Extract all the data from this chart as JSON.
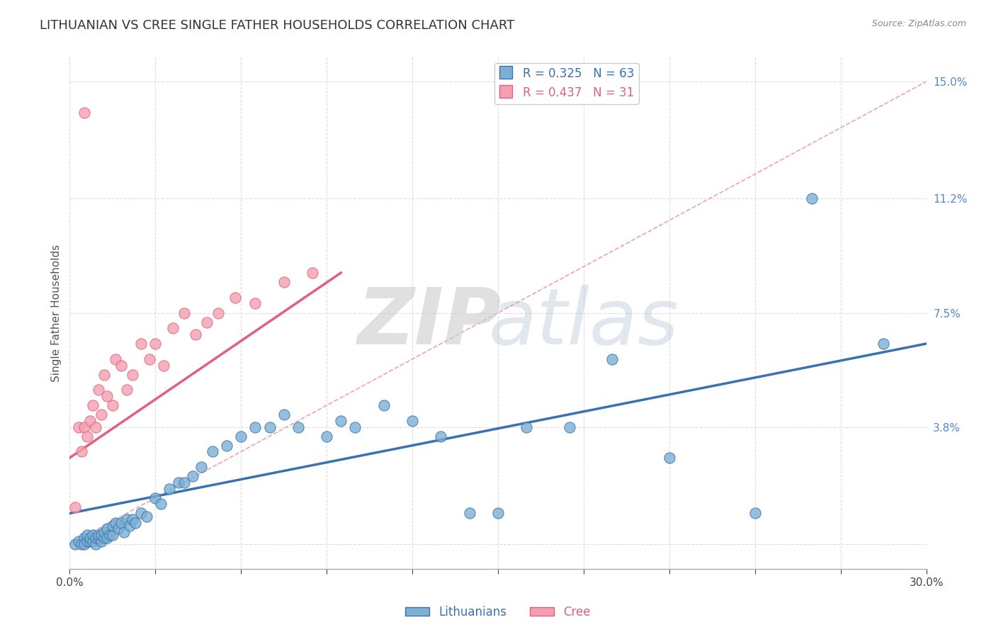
{
  "title": "LITHUANIAN VS CREE SINGLE FATHER HOUSEHOLDS CORRELATION CHART",
  "source": "Source: ZipAtlas.com",
  "ylabel": "Single Father Households",
  "xmin": 0.0,
  "xmax": 0.3,
  "ymin": -0.008,
  "ymax": 0.158,
  "ytick_vals": [
    0.0,
    0.038,
    0.075,
    0.112,
    0.15
  ],
  "ytick_labels": [
    "",
    "3.8%",
    "7.5%",
    "11.2%",
    "15.0%"
  ],
  "xtick_vals": [
    0.0,
    0.03,
    0.06,
    0.09,
    0.12,
    0.15,
    0.18,
    0.21,
    0.24,
    0.27,
    0.3
  ],
  "legend_blue_r": "R = 0.325",
  "legend_blue_n": "N = 63",
  "legend_pink_r": "R = 0.437",
  "legend_pink_n": "N = 31",
  "legend_blue_label": "Lithuanians",
  "legend_pink_label": "Cree",
  "blue_color": "#7BAFD4",
  "pink_color": "#F4A0B0",
  "blue_line_color": "#3A72B0",
  "pink_line_color": "#E06080",
  "ref_line_color": "#F0A0B0",
  "background_color": "#FFFFFF",
  "grid_color": "#DDDDDD",
  "blue_scatter_x": [
    0.002,
    0.003,
    0.004,
    0.005,
    0.005,
    0.006,
    0.006,
    0.007,
    0.007,
    0.008,
    0.008,
    0.009,
    0.009,
    0.01,
    0.01,
    0.011,
    0.011,
    0.012,
    0.012,
    0.013,
    0.013,
    0.014,
    0.015,
    0.015,
    0.016,
    0.017,
    0.018,
    0.019,
    0.02,
    0.021,
    0.022,
    0.023,
    0.025,
    0.027,
    0.03,
    0.032,
    0.035,
    0.038,
    0.04,
    0.043,
    0.046,
    0.05,
    0.055,
    0.06,
    0.065,
    0.07,
    0.075,
    0.08,
    0.09,
    0.095,
    0.1,
    0.11,
    0.12,
    0.13,
    0.14,
    0.15,
    0.16,
    0.175,
    0.19,
    0.21,
    0.24,
    0.26,
    0.285
  ],
  "blue_scatter_y": [
    0.0,
    0.001,
    0.0,
    0.002,
    0.0,
    0.001,
    0.003,
    0.001,
    0.002,
    0.001,
    0.003,
    0.0,
    0.002,
    0.002,
    0.003,
    0.001,
    0.003,
    0.002,
    0.004,
    0.002,
    0.005,
    0.003,
    0.003,
    0.006,
    0.007,
    0.005,
    0.007,
    0.004,
    0.008,
    0.006,
    0.008,
    0.007,
    0.01,
    0.009,
    0.015,
    0.013,
    0.018,
    0.02,
    0.02,
    0.022,
    0.025,
    0.03,
    0.032,
    0.035,
    0.038,
    0.038,
    0.042,
    0.038,
    0.035,
    0.04,
    0.038,
    0.045,
    0.04,
    0.035,
    0.01,
    0.01,
    0.038,
    0.038,
    0.06,
    0.028,
    0.01,
    0.112,
    0.065
  ],
  "pink_scatter_x": [
    0.002,
    0.003,
    0.004,
    0.005,
    0.006,
    0.007,
    0.008,
    0.009,
    0.01,
    0.011,
    0.012,
    0.013,
    0.015,
    0.016,
    0.018,
    0.02,
    0.022,
    0.025,
    0.028,
    0.03,
    0.033,
    0.036,
    0.04,
    0.044,
    0.048,
    0.052,
    0.058,
    0.065,
    0.075,
    0.085,
    0.005
  ],
  "pink_scatter_y": [
    0.012,
    0.038,
    0.03,
    0.038,
    0.035,
    0.04,
    0.045,
    0.038,
    0.05,
    0.042,
    0.055,
    0.048,
    0.045,
    0.06,
    0.058,
    0.05,
    0.055,
    0.065,
    0.06,
    0.065,
    0.058,
    0.07,
    0.075,
    0.068,
    0.072,
    0.075,
    0.08,
    0.078,
    0.085,
    0.088,
    0.14
  ],
  "blue_trend_x": [
    0.0,
    0.3
  ],
  "blue_trend_y": [
    0.01,
    0.065
  ],
  "pink_trend_x": [
    0.0,
    0.095
  ],
  "pink_trend_y": [
    0.028,
    0.088
  ],
  "ref_line_x": [
    0.0,
    0.3
  ],
  "ref_line_y": [
    0.0,
    0.15
  ]
}
